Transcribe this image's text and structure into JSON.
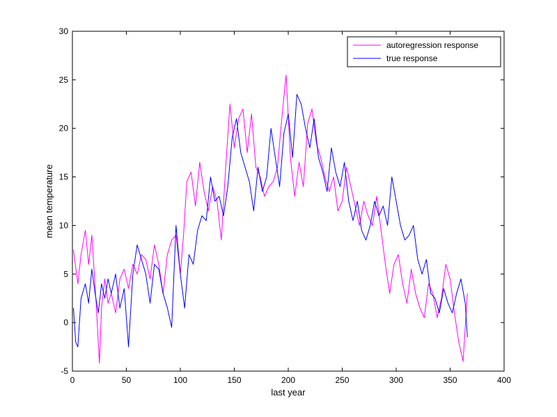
{
  "chart_data": {
    "type": "line",
    "title": "",
    "xlabel": "last year",
    "ylabel": "mean temperature",
    "xlim": [
      0,
      400
    ],
    "ylim": [
      -5,
      30
    ],
    "xticks": [
      0,
      50,
      100,
      150,
      200,
      250,
      300,
      350,
      400
    ],
    "yticks": [
      -5,
      0,
      5,
      10,
      15,
      20,
      25,
      30
    ],
    "grid": false,
    "legend_position": "top-right",
    "series": [
      {
        "name": "autoregression response",
        "color": "#ff00ff",
        "x": [
          1,
          5,
          8,
          12,
          15,
          18,
          22,
          25,
          27,
          30,
          33,
          36,
          40,
          44,
          48,
          52,
          56,
          60,
          64,
          68,
          72,
          76,
          80,
          84,
          88,
          92,
          96,
          100,
          103,
          106,
          110,
          114,
          118,
          122,
          126,
          130,
          134,
          138,
          142,
          146,
          150,
          154,
          158,
          162,
          166,
          170,
          174,
          178,
          182,
          186,
          190,
          194,
          198,
          202,
          206,
          210,
          214,
          218,
          222,
          226,
          230,
          234,
          238,
          242,
          246,
          250,
          254,
          258,
          262,
          266,
          270,
          274,
          278,
          282,
          286,
          290,
          294,
          298,
          302,
          306,
          310,
          314,
          318,
          322,
          326,
          330,
          334,
          338,
          342,
          346,
          350,
          354,
          358,
          362,
          366
        ],
        "y": [
          7.5,
          4.0,
          7.0,
          9.5,
          6.0,
          9.0,
          2.0,
          -4.2,
          1.5,
          4.5,
          2.0,
          3.0,
          1.0,
          4.5,
          5.5,
          3.5,
          6.0,
          5.0,
          7.0,
          6.5,
          4.5,
          8.0,
          6.0,
          3.0,
          7.0,
          8.5,
          9.0,
          5.0,
          9.0,
          14.5,
          15.5,
          12.0,
          16.5,
          13.5,
          11.5,
          14.0,
          12.5,
          8.5,
          16.0,
          22.5,
          18.0,
          21.0,
          22.0,
          17.5,
          21.5,
          16.0,
          15.0,
          13.0,
          14.0,
          14.5,
          16.0,
          21.0,
          25.5,
          17.0,
          13.0,
          16.5,
          14.0,
          20.5,
          22.0,
          18.5,
          17.0,
          15.0,
          13.5,
          15.0,
          11.5,
          12.5,
          16.0,
          14.0,
          12.0,
          10.0,
          12.5,
          11.0,
          10.0,
          13.0,
          9.5,
          6.0,
          3.0,
          6.0,
          7.0,
          4.0,
          2.0,
          5.5,
          3.0,
          1.5,
          0.5,
          4.0,
          3.0,
          0.5,
          2.5,
          6.0,
          4.5,
          1.0,
          -2.0,
          -4.0,
          3.0
        ]
      },
      {
        "name": "true response",
        "color": "#0000ff",
        "x": [
          1,
          3,
          5,
          8,
          12,
          15,
          18,
          21,
          24,
          27,
          30,
          33,
          36,
          40,
          44,
          48,
          52,
          56,
          60,
          64,
          68,
          72,
          76,
          80,
          84,
          88,
          92,
          96,
          100,
          104,
          108,
          112,
          116,
          120,
          124,
          128,
          132,
          136,
          140,
          144,
          148,
          152,
          156,
          160,
          164,
          168,
          172,
          176,
          180,
          184,
          188,
          192,
          196,
          200,
          204,
          208,
          212,
          216,
          220,
          224,
          228,
          232,
          236,
          240,
          244,
          248,
          252,
          256,
          260,
          264,
          268,
          272,
          276,
          280,
          284,
          288,
          292,
          296,
          300,
          304,
          308,
          312,
          316,
          320,
          324,
          328,
          332,
          336,
          340,
          344,
          348,
          352,
          356,
          360,
          364,
          366
        ],
        "y": [
          1.5,
          -2.0,
          -2.5,
          2.5,
          4.0,
          2.0,
          5.5,
          3.0,
          1.0,
          4.0,
          2.5,
          4.5,
          3.0,
          5.0,
          1.5,
          3.5,
          -2.5,
          5.0,
          8.0,
          6.5,
          5.0,
          2.0,
          6.0,
          5.5,
          3.0,
          1.5,
          -0.5,
          10.0,
          5.0,
          1.5,
          7.0,
          6.0,
          9.5,
          11.0,
          10.5,
          15.0,
          12.5,
          13.0,
          11.0,
          14.0,
          19.0,
          21.0,
          17.5,
          16.0,
          14.5,
          11.5,
          16.0,
          13.5,
          15.0,
          20.0,
          17.0,
          14.0,
          19.5,
          21.5,
          17.0,
          23.5,
          22.5,
          20.0,
          18.0,
          21.0,
          17.0,
          15.5,
          13.5,
          18.0,
          15.5,
          14.0,
          16.5,
          12.5,
          10.5,
          12.5,
          9.5,
          8.5,
          10.0,
          12.5,
          11.0,
          12.0,
          10.0,
          15.0,
          12.5,
          10.0,
          8.5,
          9.0,
          10.0,
          6.5,
          5.0,
          6.5,
          3.0,
          2.5,
          1.0,
          3.5,
          2.0,
          1.0,
          3.0,
          4.5,
          2.0,
          -1.5
        ]
      }
    ]
  }
}
